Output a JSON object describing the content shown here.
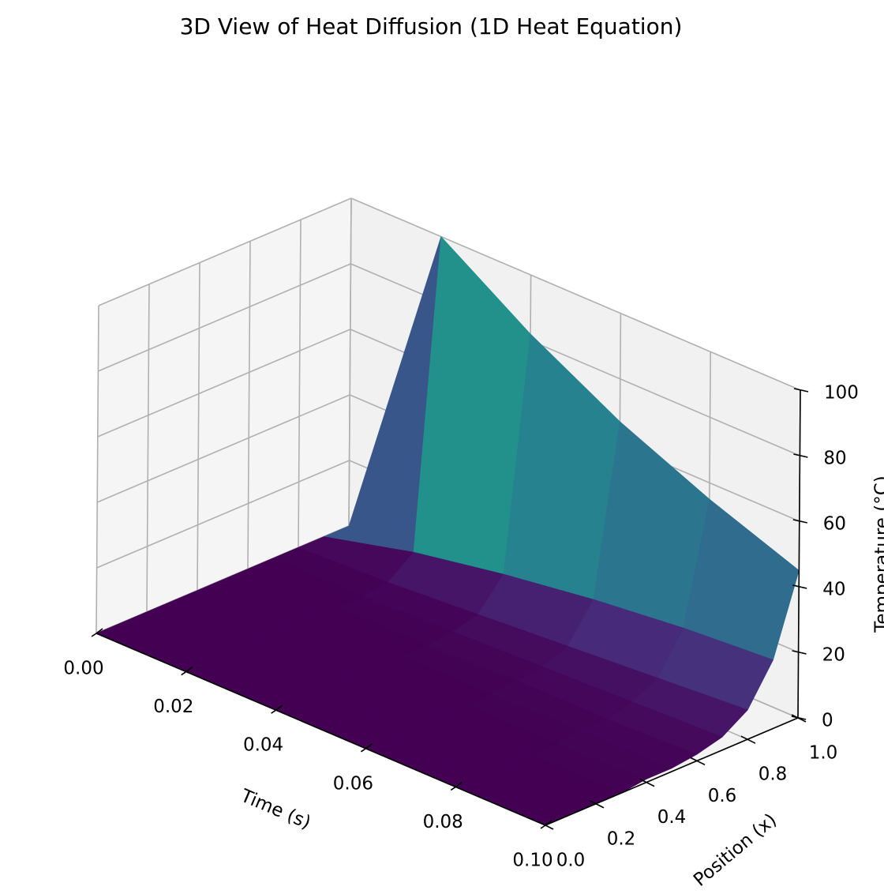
{
  "chart_data": {
    "type": "surface3d",
    "title": "3D View of Heat Diffusion (1D Heat Equation)",
    "xlabel": "Time (s)",
    "ylabel": "Position (x)",
    "zlabel": "Temperature (°C)",
    "xlim": [
      0,
      0.1
    ],
    "ylim": [
      0,
      1
    ],
    "zlim": [
      0,
      100
    ],
    "x_ticks": [
      "0.00",
      "0.02",
      "0.04",
      "0.06",
      "0.08",
      "0.10"
    ],
    "y_ticks": [
      "0.0",
      "0.2",
      "0.4",
      "0.6",
      "0.8",
      "1.0"
    ],
    "z_ticks": [
      "0",
      "20",
      "40",
      "60",
      "80",
      "100"
    ],
    "colormap": "viridis",
    "grid": true,
    "surface": {
      "time": [
        0,
        0.02,
        0.04,
        0.06,
        0.08,
        0.1
      ],
      "position": [
        0,
        0.1,
        0.2,
        0.3,
        0.4,
        0.5,
        0.6,
        0.7,
        0.8,
        0.9,
        1.0
      ],
      "temperature": [
        [
          0,
          0,
          0,
          0,
          0,
          0,
          0,
          0,
          0,
          0,
          0
        ],
        [
          0,
          0,
          0,
          0,
          0,
          0,
          0,
          0,
          1,
          7,
          100
        ],
        [
          0,
          0,
          0,
          0,
          0,
          0,
          0,
          1,
          3,
          12,
          82
        ],
        [
          0,
          0,
          0,
          0,
          0,
          0,
          1,
          2,
          5,
          16,
          67
        ],
        [
          0,
          0,
          0,
          0,
          0,
          1,
          1,
          3,
          7,
          19,
          55
        ],
        [
          0,
          0,
          0,
          0,
          1,
          1,
          2,
          4,
          9,
          21,
          45
        ]
      ]
    }
  }
}
